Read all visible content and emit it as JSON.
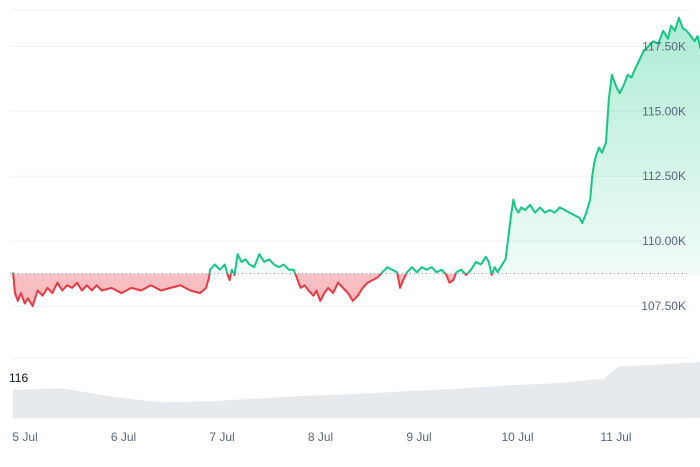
{
  "chart_data": {
    "type": "area",
    "baseline": 108750,
    "ylim": [
      105500,
      118900
    ],
    "y_ticks": [
      107500,
      110000,
      112500,
      115000,
      117500
    ],
    "y_tick_labels": [
      "107.50K",
      "110.00K",
      "112.50K",
      "115.00K",
      "117.50K"
    ],
    "x_ticks": [
      0,
      1,
      2,
      3,
      4,
      5,
      6
    ],
    "x_tick_labels": [
      "5 Jul",
      "6 Jul",
      "7 Jul",
      "8 Jul",
      "9 Jul",
      "10 Jul",
      "11 Jul"
    ],
    "xlim": [
      0,
      6.98
    ],
    "series": [
      {
        "values": [
          [
            0.0,
            108800
          ],
          [
            0.02,
            108000
          ],
          [
            0.05,
            107700
          ],
          [
            0.08,
            108000
          ],
          [
            0.12,
            107600
          ],
          [
            0.15,
            107800
          ],
          [
            0.2,
            107500
          ],
          [
            0.25,
            108100
          ],
          [
            0.3,
            107900
          ],
          [
            0.35,
            108200
          ],
          [
            0.4,
            108000
          ],
          [
            0.45,
            108400
          ],
          [
            0.5,
            108100
          ],
          [
            0.55,
            108300
          ],
          [
            0.6,
            108200
          ],
          [
            0.65,
            108400
          ],
          [
            0.7,
            108100
          ],
          [
            0.75,
            108300
          ],
          [
            0.8,
            108100
          ],
          [
            0.85,
            108300
          ],
          [
            0.9,
            108100
          ],
          [
            1.0,
            108200
          ],
          [
            1.1,
            108000
          ],
          [
            1.2,
            108200
          ],
          [
            1.3,
            108100
          ],
          [
            1.4,
            108300
          ],
          [
            1.5,
            108100
          ],
          [
            1.6,
            108200
          ],
          [
            1.7,
            108300
          ],
          [
            1.8,
            108100
          ],
          [
            1.9,
            108000
          ],
          [
            1.96,
            108200
          ],
          [
            1.99,
            108600
          ],
          [
            2.0,
            108900
          ],
          [
            2.05,
            109100
          ],
          [
            2.1,
            108900
          ],
          [
            2.15,
            109100
          ],
          [
            2.18,
            108700
          ],
          [
            2.2,
            108500
          ],
          [
            2.22,
            108900
          ],
          [
            2.25,
            108700
          ],
          [
            2.28,
            109500
          ],
          [
            2.32,
            109200
          ],
          [
            2.36,
            109300
          ],
          [
            2.4,
            109100
          ],
          [
            2.45,
            109000
          ],
          [
            2.5,
            109500
          ],
          [
            2.55,
            109200
          ],
          [
            2.6,
            109300
          ],
          [
            2.65,
            109100
          ],
          [
            2.7,
            109000
          ],
          [
            2.75,
            109100
          ],
          [
            2.8,
            108900
          ],
          [
            2.85,
            108900
          ],
          [
            2.88,
            108600
          ],
          [
            2.92,
            108200
          ],
          [
            2.96,
            108300
          ],
          [
            3.0,
            108100
          ],
          [
            3.05,
            107900
          ],
          [
            3.08,
            108100
          ],
          [
            3.12,
            107700
          ],
          [
            3.16,
            108000
          ],
          [
            3.2,
            108200
          ],
          [
            3.25,
            108000
          ],
          [
            3.3,
            108400
          ],
          [
            3.35,
            108200
          ],
          [
            3.4,
            108000
          ],
          [
            3.45,
            107700
          ],
          [
            3.5,
            107900
          ],
          [
            3.55,
            108200
          ],
          [
            3.6,
            108400
          ],
          [
            3.65,
            108500
          ],
          [
            3.7,
            108600
          ],
          [
            3.75,
            108800
          ],
          [
            3.8,
            109000
          ],
          [
            3.85,
            108900
          ],
          [
            3.9,
            108800
          ],
          [
            3.93,
            108200
          ],
          [
            3.96,
            108500
          ],
          [
            4.0,
            108800
          ],
          [
            4.05,
            109000
          ],
          [
            4.1,
            108800
          ],
          [
            4.15,
            109000
          ],
          [
            4.2,
            108900
          ],
          [
            4.25,
            109000
          ],
          [
            4.3,
            108800
          ],
          [
            4.35,
            108900
          ],
          [
            4.4,
            108700
          ],
          [
            4.43,
            108400
          ],
          [
            4.47,
            108500
          ],
          [
            4.5,
            108800
          ],
          [
            4.55,
            108900
          ],
          [
            4.6,
            108700
          ],
          [
            4.65,
            108900
          ],
          [
            4.7,
            109200
          ],
          [
            4.75,
            109100
          ],
          [
            4.8,
            109400
          ],
          [
            4.83,
            109200
          ],
          [
            4.86,
            108700
          ],
          [
            4.89,
            109000
          ],
          [
            4.92,
            108800
          ],
          [
            4.95,
            109000
          ],
          [
            5.0,
            109300
          ],
          [
            5.03,
            110200
          ],
          [
            5.06,
            111100
          ],
          [
            5.08,
            111600
          ],
          [
            5.1,
            111300
          ],
          [
            5.13,
            111100
          ],
          [
            5.16,
            111300
          ],
          [
            5.2,
            111200
          ],
          [
            5.25,
            111400
          ],
          [
            5.3,
            111100
          ],
          [
            5.35,
            111300
          ],
          [
            5.4,
            111100
          ],
          [
            5.45,
            111200
          ],
          [
            5.5,
            111100
          ],
          [
            5.55,
            111300
          ],
          [
            5.6,
            111200
          ],
          [
            5.65,
            111100
          ],
          [
            5.7,
            111000
          ],
          [
            5.75,
            110900
          ],
          [
            5.78,
            110700
          ],
          [
            5.82,
            111100
          ],
          [
            5.86,
            111600
          ],
          [
            5.88,
            112500
          ],
          [
            5.9,
            113000
          ],
          [
            5.92,
            113300
          ],
          [
            5.95,
            113600
          ],
          [
            5.98,
            113400
          ],
          [
            6.02,
            113800
          ],
          [
            6.05,
            115500
          ],
          [
            6.08,
            116400
          ],
          [
            6.1,
            116200
          ],
          [
            6.13,
            115900
          ],
          [
            6.16,
            115700
          ],
          [
            6.2,
            116000
          ],
          [
            6.24,
            116400
          ],
          [
            6.28,
            116300
          ],
          [
            6.3,
            116500
          ],
          [
            6.35,
            116900
          ],
          [
            6.4,
            117300
          ],
          [
            6.45,
            117500
          ],
          [
            6.5,
            117700
          ],
          [
            6.55,
            117600
          ],
          [
            6.6,
            118100
          ],
          [
            6.65,
            117800
          ],
          [
            6.68,
            118300
          ],
          [
            6.72,
            118100
          ],
          [
            6.76,
            118600
          ],
          [
            6.8,
            118200
          ],
          [
            6.84,
            118100
          ],
          [
            6.88,
            117900
          ],
          [
            6.92,
            117700
          ],
          [
            6.95,
            117900
          ],
          [
            6.98,
            117400
          ]
        ]
      }
    ],
    "volume": {
      "label": "116",
      "values": [
        [
          0.0,
          0.5
        ],
        [
          0.5,
          0.53
        ],
        [
          1.0,
          0.38
        ],
        [
          1.5,
          0.28
        ],
        [
          2.0,
          0.3
        ],
        [
          2.5,
          0.35
        ],
        [
          3.0,
          0.4
        ],
        [
          3.5,
          0.43
        ],
        [
          4.0,
          0.48
        ],
        [
          4.5,
          0.52
        ],
        [
          5.0,
          0.58
        ],
        [
          5.5,
          0.62
        ],
        [
          6.0,
          0.7
        ],
        [
          6.15,
          0.92
        ],
        [
          6.5,
          0.95
        ],
        [
          6.98,
          1.0
        ]
      ]
    },
    "grid": true,
    "colors": {
      "up": "#16c784",
      "down": "#ea3943",
      "up_fill": "#16c784",
      "down_fill": "#ea3943",
      "grid": "#eff2f5",
      "baseline": "#8a939f",
      "volume": "#e3e6ea"
    }
  }
}
